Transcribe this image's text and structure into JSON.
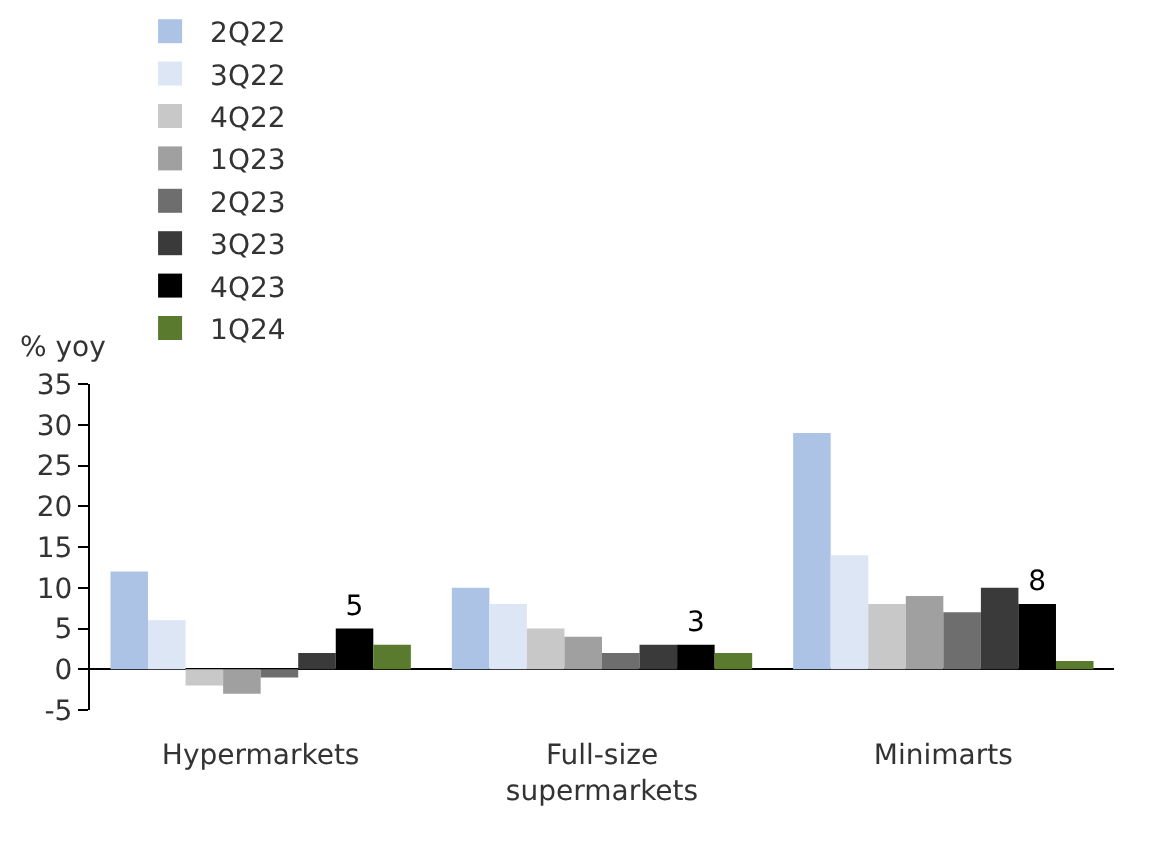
{
  "chart_data": {
    "type": "bar",
    "ylabel": "% yoy",
    "categories": [
      "Hypermarkets",
      "Full-size supermarkets",
      "Minimarts"
    ],
    "series": [
      {
        "name": "2Q22",
        "color": "#adc3e6",
        "values": [
          12,
          10,
          29
        ]
      },
      {
        "name": "3Q22",
        "color": "#dde6f5",
        "values": [
          6,
          8,
          14
        ]
      },
      {
        "name": "4Q22",
        "color": "#c8c8c8",
        "values": [
          -2,
          5,
          8
        ]
      },
      {
        "name": "1Q23",
        "color": "#a0a0a0",
        "values": [
          -3,
          4,
          9
        ]
      },
      {
        "name": "2Q23",
        "color": "#6e6e6e",
        "values": [
          -1,
          2,
          7
        ]
      },
      {
        "name": "3Q23",
        "color": "#3a3a3a",
        "values": [
          2,
          3,
          10
        ]
      },
      {
        "name": "4Q23",
        "color": "#000000",
        "values": [
          5,
          3,
          8
        ],
        "value_labels": [
          "5",
          "3",
          "8"
        ]
      },
      {
        "name": "1Q24",
        "color": "#5a7a2e",
        "values": [
          3,
          2,
          1
        ]
      }
    ],
    "ylim": [
      -5,
      35
    ],
    "yticks": [
      -5,
      0,
      5,
      10,
      15,
      20,
      25,
      30,
      35
    ],
    "grid": false,
    "legend": "top"
  }
}
